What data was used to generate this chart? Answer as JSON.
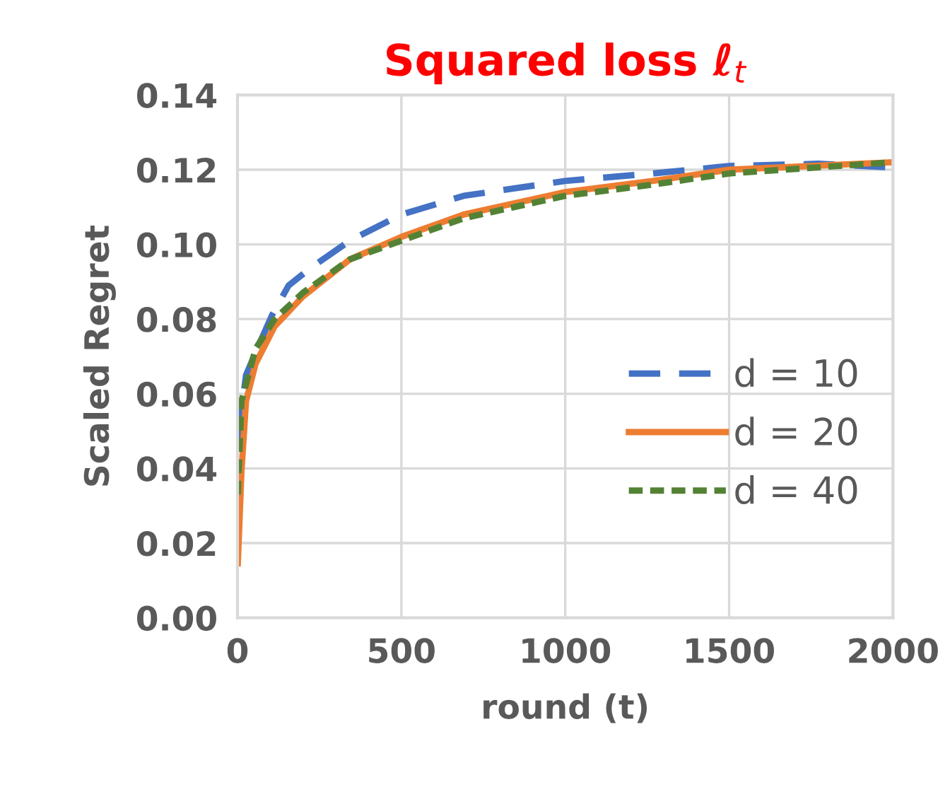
{
  "chart_data": {
    "type": "line",
    "title": "Squared loss ℓ$_{t}$",
    "xlabel": "round (t)",
    "ylabel": "Scaled Regret",
    "xlim": [
      0,
      2000
    ],
    "xticks": [
      0,
      500,
      1000,
      1500,
      2000
    ],
    "ylim": [
      0,
      0.14
    ],
    "yticks": [
      {
        "value": 0,
        "label": "0.00"
      },
      {
        "value": 0.02,
        "label": "0.02"
      },
      {
        "value": 0.04,
        "label": "0.04"
      },
      {
        "value": 0.06,
        "label": "0.06"
      },
      {
        "value": 0.08,
        "label": "0.08"
      },
      {
        "value": 0.1,
        "label": "0.10"
      },
      {
        "value": 0.12,
        "label": "0.12"
      },
      {
        "value": 0.14,
        "label": "0.14"
      }
    ],
    "grid": true,
    "legend": "right",
    "marker": "none",
    "series": [
      {
        "name": "d = 10",
        "color": "#4472c4",
        "line_style": "dashed",
        "x": [
          1,
          26,
          55,
          105,
          156,
          228,
          343,
          500,
          690,
          1000,
          1267,
          1500,
          1772,
          2000
        ],
        "values": [
          0.048,
          0.065,
          0.071,
          0.081,
          0.089,
          0.094,
          0.101,
          0.108,
          0.113,
          0.117,
          0.119,
          0.121,
          0.1216,
          0.1206
        ]
      },
      {
        "name": "d = 20",
        "color": "#ed7d31",
        "line_style": "solid",
        "x": [
          1,
          12,
          26,
          55,
          113,
          199,
          343,
          500,
          690,
          1000,
          1267,
          1500,
          2000
        ],
        "values": [
          0.0146,
          0.039,
          0.058,
          0.068,
          0.078,
          0.086,
          0.096,
          0.102,
          0.108,
          0.114,
          0.117,
          0.12,
          0.122
        ]
      },
      {
        "name": "d = 40",
        "color": "#548235",
        "line_style": "dotted",
        "x": [
          1,
          12,
          55,
          113,
          199,
          343,
          500,
          690,
          1000,
          1267,
          1500,
          2000
        ],
        "values": [
          0.033,
          0.058,
          0.072,
          0.08,
          0.087,
          0.096,
          0.101,
          0.107,
          0.113,
          0.116,
          0.119,
          0.122
        ]
      }
    ]
  }
}
